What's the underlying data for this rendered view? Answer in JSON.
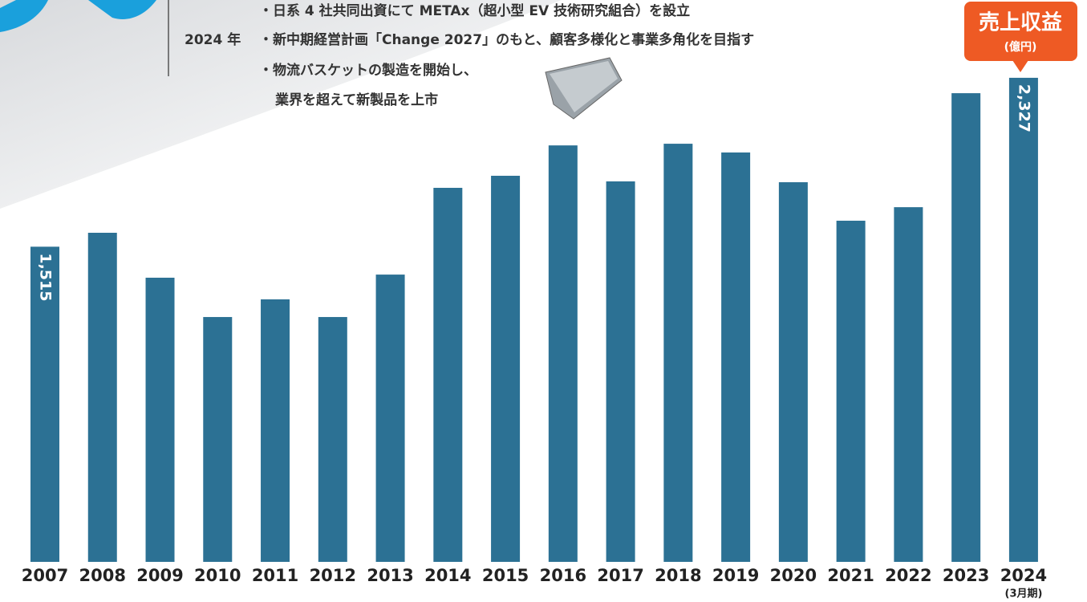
{
  "chart_data": {
    "type": "bar",
    "annotations": {
      "line1": "・日系 4 社共同出資にて METAx（超小型 EV 技術研究組合）を設立",
      "year": "2024 年",
      "line2": "・新中期経営計画「Change 2027」のもと、顧客多様化と事業多角化を目指す",
      "line3": "・物流バスケットの製造を開始し、",
      "line4": "業界を超えて新製品を上市"
    },
    "badge": {
      "title": "売上収益",
      "unit": "(億円)"
    },
    "x_note": "(3月期)",
    "categories": [
      "2007",
      "2008",
      "2009",
      "2010",
      "2011",
      "2012",
      "2013",
      "2014",
      "2015",
      "2016",
      "2017",
      "2018",
      "2019",
      "2020",
      "2021",
      "2022",
      "2023",
      "2024"
    ],
    "values": [
      1515,
      1582,
      1366,
      1177,
      1262,
      1177,
      1381,
      1798,
      1856,
      2002,
      1829,
      2010,
      1968,
      1825,
      1640,
      1705,
      2253,
      2327
    ],
    "value_labels": [
      "1,515",
      null,
      null,
      null,
      null,
      null,
      null,
      null,
      null,
      null,
      null,
      null,
      null,
      null,
      null,
      null,
      null,
      "2,327"
    ],
    "color": "#2c7194",
    "ylim": [
      0,
      2400
    ]
  }
}
